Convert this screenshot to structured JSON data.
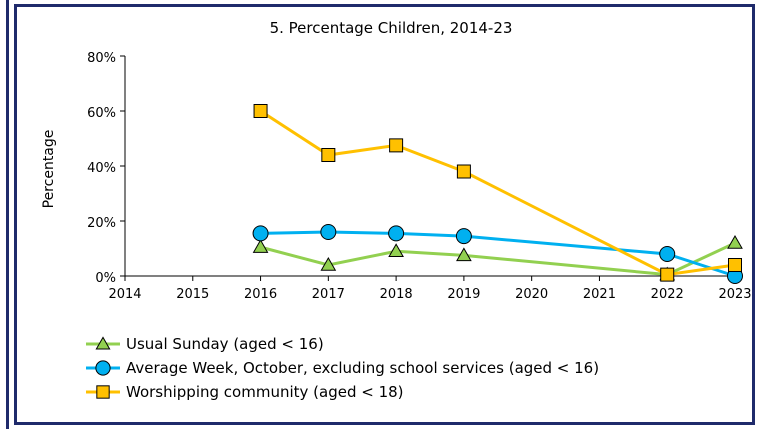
{
  "chart_data": {
    "type": "line",
    "title": "5. Percentage Children, 2014-23",
    "xlabel": "",
    "ylabel": "Percentage",
    "x": [
      2014,
      2015,
      2016,
      2017,
      2018,
      2019,
      2020,
      2021,
      2022,
      2023
    ],
    "xlim": [
      2014,
      2023
    ],
    "ylim": [
      0,
      80
    ],
    "yticks": [
      "0%",
      "20%",
      "40%",
      "60%",
      "80%"
    ],
    "grid": false,
    "legend_position": "bottom-left",
    "series": [
      {
        "name": "Usual Sunday (aged < 16)",
        "color": "#92d050",
        "marker": "triangle",
        "points": [
          [
            2016,
            10.5
          ],
          [
            2017,
            4
          ],
          [
            2018,
            9
          ],
          [
            2019,
            7.5
          ],
          [
            2022,
            0.5
          ],
          [
            2023,
            12
          ]
        ]
      },
      {
        "name": "Average Week, October, excluding school services (aged < 16)",
        "color": "#00b0f0",
        "marker": "circle",
        "points": [
          [
            2016,
            15.5
          ],
          [
            2017,
            16
          ],
          [
            2018,
            15.5
          ],
          [
            2019,
            14.5
          ],
          [
            2022,
            8
          ],
          [
            2023,
            0
          ]
        ]
      },
      {
        "name": "Worshipping community (aged < 18)",
        "color": "#ffc000",
        "marker": "square",
        "points": [
          [
            2016,
            60
          ],
          [
            2017,
            44
          ],
          [
            2018,
            47.5
          ],
          [
            2019,
            38
          ],
          [
            2022,
            0.5
          ],
          [
            2023,
            4
          ]
        ]
      }
    ]
  }
}
